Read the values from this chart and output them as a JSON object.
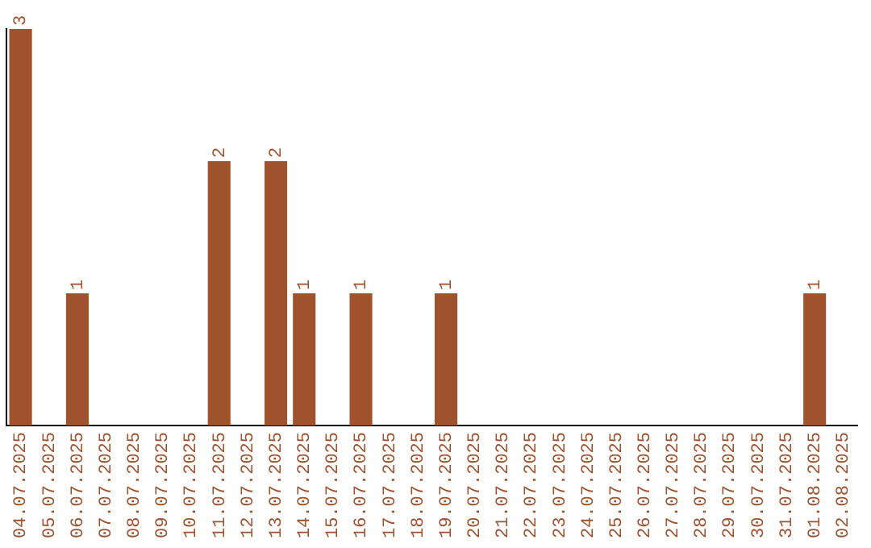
{
  "chart_data": {
    "type": "bar",
    "categories": [
      "04.07.2025",
      "05.07.2025",
      "06.07.2025",
      "07.07.2025",
      "08.07.2025",
      "09.07.2025",
      "10.07.2025",
      "11.07.2025",
      "12.07.2025",
      "13.07.2025",
      "14.07.2025",
      "15.07.2025",
      "16.07.2025",
      "17.07.2025",
      "18.07.2025",
      "19.07.2025",
      "20.07.2025",
      "21.07.2025",
      "22.07.2025",
      "23.07.2025",
      "24.07.2025",
      "25.07.2025",
      "26.07.2025",
      "27.07.2025",
      "28.07.2025",
      "29.07.2025",
      "30.07.2025",
      "31.07.2025",
      "01.08.2025",
      "02.08.2025"
    ],
    "values": [
      3,
      0,
      1,
      0,
      0,
      0,
      0,
      2,
      0,
      2,
      1,
      0,
      1,
      0,
      0,
      1,
      0,
      0,
      0,
      0,
      0,
      0,
      0,
      0,
      0,
      0,
      0,
      0,
      1,
      0
    ],
    "value_labels": [
      "3",
      null,
      "1",
      null,
      null,
      null,
      null,
      "2",
      null,
      "2",
      "1",
      null,
      "1",
      null,
      null,
      "1",
      null,
      null,
      null,
      null,
      null,
      null,
      null,
      null,
      null,
      null,
      null,
      null,
      "1",
      null
    ],
    "color": "#a0522d",
    "grid": false,
    "legend": false,
    "tick_labels": "x"
  }
}
